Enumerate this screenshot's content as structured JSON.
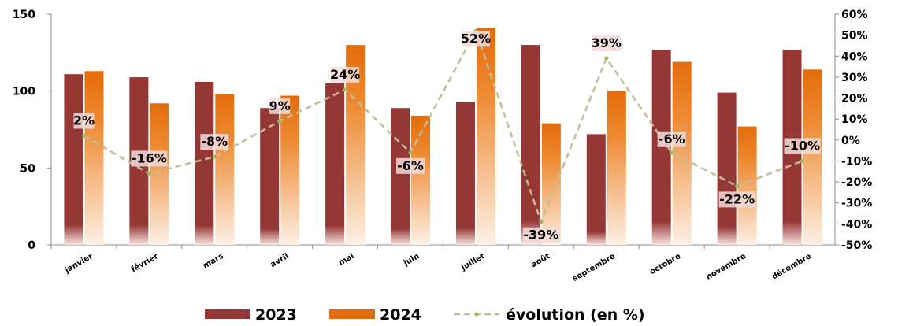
{
  "chart_data": {
    "type": "bar",
    "categories": [
      "janvier",
      "février",
      "mars",
      "avril",
      "mai",
      "juin",
      "juillet",
      "août",
      "septembre",
      "octobre",
      "novembre",
      "décembre"
    ],
    "series": [
      {
        "name": "2023",
        "type": "bar",
        "axis": "left",
        "color": "#953735",
        "values": [
          111,
          109,
          106,
          89,
          105,
          89,
          93,
          130,
          72,
          127,
          99,
          127
        ]
      },
      {
        "name": "2024",
        "type": "bar",
        "axis": "left",
        "color": "#E46C0A",
        "values": [
          113,
          92,
          98,
          97,
          130,
          84,
          141,
          79,
          100,
          119,
          77,
          114
        ]
      },
      {
        "name": "évolution (en %)",
        "type": "line",
        "axis": "right",
        "color": "#C4BD97",
        "marker_color": "#9BBB59",
        "values": [
          2,
          -16,
          -8,
          9,
          24,
          -6,
          52,
          -39,
          39,
          -6,
          -22,
          -10
        ],
        "labels": [
          "2%",
          "-16%",
          "-8%",
          "9%",
          "24%",
          "-6%",
          "52%",
          "-39%",
          "39%",
          "-6%",
          "-22%",
          "-10%"
        ]
      }
    ],
    "ylim": [
      0,
      150
    ],
    "yticks": [
      "0",
      "50",
      "100",
      "150"
    ],
    "y2lim": [
      -50,
      60
    ],
    "y2ticks": [
      "-50%",
      "-40%",
      "-30%",
      "-20%",
      "-10%",
      "0%",
      "10%",
      "20%",
      "30%",
      "40%",
      "50%",
      "60%"
    ],
    "legend": {
      "position": "bottom",
      "entries": [
        "2023",
        "2024",
        "évolution (en %)"
      ]
    },
    "grid": false
  }
}
